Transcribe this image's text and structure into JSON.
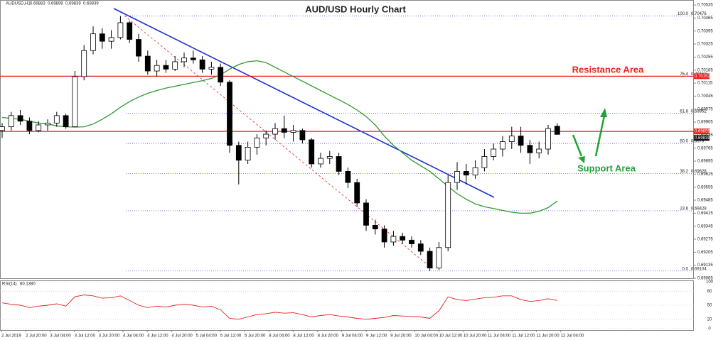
{
  "chart_data": {
    "type": "candlestick",
    "title": "AUD/USD Hourly Chart",
    "symbol": "AUDUSD,H1",
    "annotations": {
      "resistance": "Resistance Area",
      "support": "Support Area"
    },
    "ylim": [
      0.69065,
      0.70562
    ],
    "yticks": [
      0.70535,
      0.70465,
      0.70395,
      0.70325,
      0.70255,
      0.70185,
      0.70115,
      0.70045,
      0.69975,
      0.69905,
      0.69835,
      0.69765,
      0.69695,
      0.69625,
      0.69555,
      0.69485,
      0.69415,
      0.69345,
      0.69275,
      0.69205,
      0.69135,
      0.69065
    ],
    "time_labels": [
      "2 Jul 2019",
      "2 Jul 20:00",
      "3 Jul 04:00",
      "3 Jul 12:00",
      "3 Jul 20:00",
      "4 Jul 04:00",
      "4 Jul 12:00",
      "4 Jul 20:00",
      "5 Jul 04:00",
      "5 Jul 12:00",
      "5 Jul 20:00",
      "8 Jul 04:00",
      "8 Jul 12:00",
      "8 Jul 20:00",
      "9 Jul 04:00",
      "9 Jul 12:00",
      "9 Jul 20:00",
      "10 Jul 04:00",
      "10 Jul 12:00",
      "10 Jul 20:00",
      "11 Jul 04:00",
      "11 Jul 12:00",
      "11 Jul 20:00",
      "12 Jul 04:00"
    ],
    "open": [
      0.6986,
      0.6988,
      0.6994,
      0.6991,
      0.6986,
      0.6989,
      0.699,
      0.6994,
      0.6988,
      0.7015,
      0.7029,
      0.7038,
      0.7034,
      0.7036,
      0.7044,
      0.7035,
      0.7026,
      0.7018,
      0.7021,
      0.7019,
      0.7023,
      0.7025,
      0.7024,
      0.7019,
      0.702,
      0.7012,
      0.6978,
      0.697,
      0.6977,
      0.6982,
      0.6984,
      0.6987,
      0.6985,
      0.6986,
      0.6981,
      0.6968,
      0.6971,
      0.6972,
      0.6964,
      0.6958,
      0.6947,
      0.6935,
      0.6933,
      0.6926,
      0.6929,
      0.6927,
      0.6925,
      0.6921,
      0.6912,
      0.6923,
      0.6958,
      0.6964,
      0.6962,
      0.6966,
      0.6972,
      0.6976,
      0.698,
      0.6983,
      0.6978,
      0.6974,
      0.6976,
      0.69883
    ],
    "high": [
      0.699,
      0.6996,
      0.6997,
      0.6993,
      0.6991,
      0.6992,
      0.6996,
      0.6995,
      0.7018,
      0.7032,
      0.7042,
      0.7041,
      0.704,
      0.70476,
      0.7045,
      0.7038,
      0.7029,
      0.7024,
      0.7024,
      0.7026,
      0.7028,
      0.7029,
      0.7026,
      0.7023,
      0.7022,
      0.7013,
      0.698,
      0.698,
      0.6984,
      0.6986,
      0.699,
      0.6994,
      0.6989,
      0.6987,
      0.6982,
      0.6974,
      0.6975,
      0.6974,
      0.6966,
      0.696,
      0.6949,
      0.6938,
      0.6935,
      0.6932,
      0.6931,
      0.6929,
      0.6927,
      0.6923,
      0.6926,
      0.6962,
      0.6969,
      0.6968,
      0.697,
      0.6976,
      0.6979,
      0.6983,
      0.6988,
      0.6988,
      0.6981,
      0.698,
      0.6989,
      0.69899
    ],
    "low": [
      0.6982,
      0.6986,
      0.6989,
      0.6984,
      0.6985,
      0.6986,
      0.6988,
      0.6987,
      0.6988,
      0.7013,
      0.7027,
      0.703,
      0.703,
      0.7035,
      0.7033,
      0.7023,
      0.7016,
      0.7015,
      0.7017,
      0.7018,
      0.702,
      0.7022,
      0.7017,
      0.7016,
      0.701,
      0.6974,
      0.6957,
      0.6968,
      0.6973,
      0.6978,
      0.6981,
      0.6982,
      0.698,
      0.6979,
      0.6966,
      0.6966,
      0.6968,
      0.6962,
      0.6955,
      0.6945,
      0.6932,
      0.693,
      0.6923,
      0.6924,
      0.6925,
      0.6923,
      0.6919,
      0.69104,
      0.6911,
      0.6921,
      0.6954,
      0.6957,
      0.696,
      0.6964,
      0.697,
      0.6972,
      0.6976,
      0.6974,
      0.6968,
      0.6971,
      0.6973,
      0.69839
    ],
    "close": [
      0.6988,
      0.6994,
      0.6991,
      0.6986,
      0.6989,
      0.699,
      0.6994,
      0.6988,
      0.7015,
      0.7029,
      0.7038,
      0.7034,
      0.7036,
      0.7044,
      0.7035,
      0.7026,
      0.7018,
      0.7021,
      0.7019,
      0.7023,
      0.7025,
      0.7024,
      0.7019,
      0.702,
      0.7012,
      0.6978,
      0.697,
      0.6977,
      0.6982,
      0.6984,
      0.6987,
      0.6985,
      0.6986,
      0.6981,
      0.6968,
      0.6971,
      0.6972,
      0.6964,
      0.6958,
      0.6947,
      0.6935,
      0.6933,
      0.6926,
      0.6929,
      0.6927,
      0.6925,
      0.6921,
      0.6912,
      0.6923,
      0.6958,
      0.6964,
      0.6962,
      0.6966,
      0.6972,
      0.6976,
      0.698,
      0.6983,
      0.6978,
      0.6974,
      0.6976,
      0.6987,
      0.69839
    ],
    "ma": {
      "color": "#2e9a2e",
      "values": [
        0.6993,
        0.69925,
        0.6992,
        0.6991,
        0.699,
        0.69895,
        0.69885,
        0.6988,
        0.69878,
        0.6988,
        0.69895,
        0.6992,
        0.6995,
        0.69985,
        0.70015,
        0.7004,
        0.7006,
        0.70075,
        0.70088,
        0.70098,
        0.70108,
        0.70118,
        0.70128,
        0.7014,
        0.7016,
        0.7019,
        0.70215,
        0.7023,
        0.70235,
        0.70225,
        0.702,
        0.70175,
        0.7015,
        0.70125,
        0.701,
        0.70075,
        0.7005,
        0.70025,
        0.7,
        0.6997,
        0.69935,
        0.6989,
        0.6983,
        0.6978,
        0.6974,
        0.697,
        0.6967,
        0.6964,
        0.696,
        0.6956,
        0.6952,
        0.6949,
        0.69465,
        0.6945,
        0.6944,
        0.6943,
        0.6942,
        0.69415,
        0.69415,
        0.69425,
        0.69445,
        0.6948
      ]
    },
    "fib_levels": [
      {
        "label": "100.0",
        "value": 0.70476
      },
      {
        "label": "76.4",
        "value": 0.70152
      },
      {
        "label": "61.8",
        "value": 0.69952
      },
      {
        "label": "50.0",
        "value": 0.6979
      },
      {
        "label": "38.2",
        "value": 0.69628
      },
      {
        "label": "23.6",
        "value": 0.69428
      },
      {
        "label": "0.0",
        "value": 0.69104
      }
    ],
    "hlines": {
      "color": "#e8201e",
      "values": [
        0.70152,
        0.69855
      ]
    },
    "last_price": 0.69839,
    "rsi": {
      "name": "RSI(14)",
      "color": "#e8201e",
      "ylim": [
        0,
        100
      ],
      "yticks": [
        100,
        80,
        50,
        20,
        0
      ],
      "last_label": "60.1380",
      "values": [
        55,
        52,
        50,
        45,
        48,
        50,
        53,
        48,
        68,
        72,
        70,
        65,
        66,
        70,
        60,
        50,
        45,
        48,
        46,
        50,
        52,
        50,
        46,
        48,
        40,
        22,
        20,
        25,
        30,
        32,
        35,
        33,
        34,
        30,
        25,
        28,
        30,
        27,
        25,
        22,
        20,
        22,
        24,
        28,
        27,
        26,
        25,
        22,
        38,
        68,
        62,
        60,
        63,
        66,
        67,
        70,
        70,
        62,
        58,
        60,
        64,
        60.138
      ]
    }
  }
}
